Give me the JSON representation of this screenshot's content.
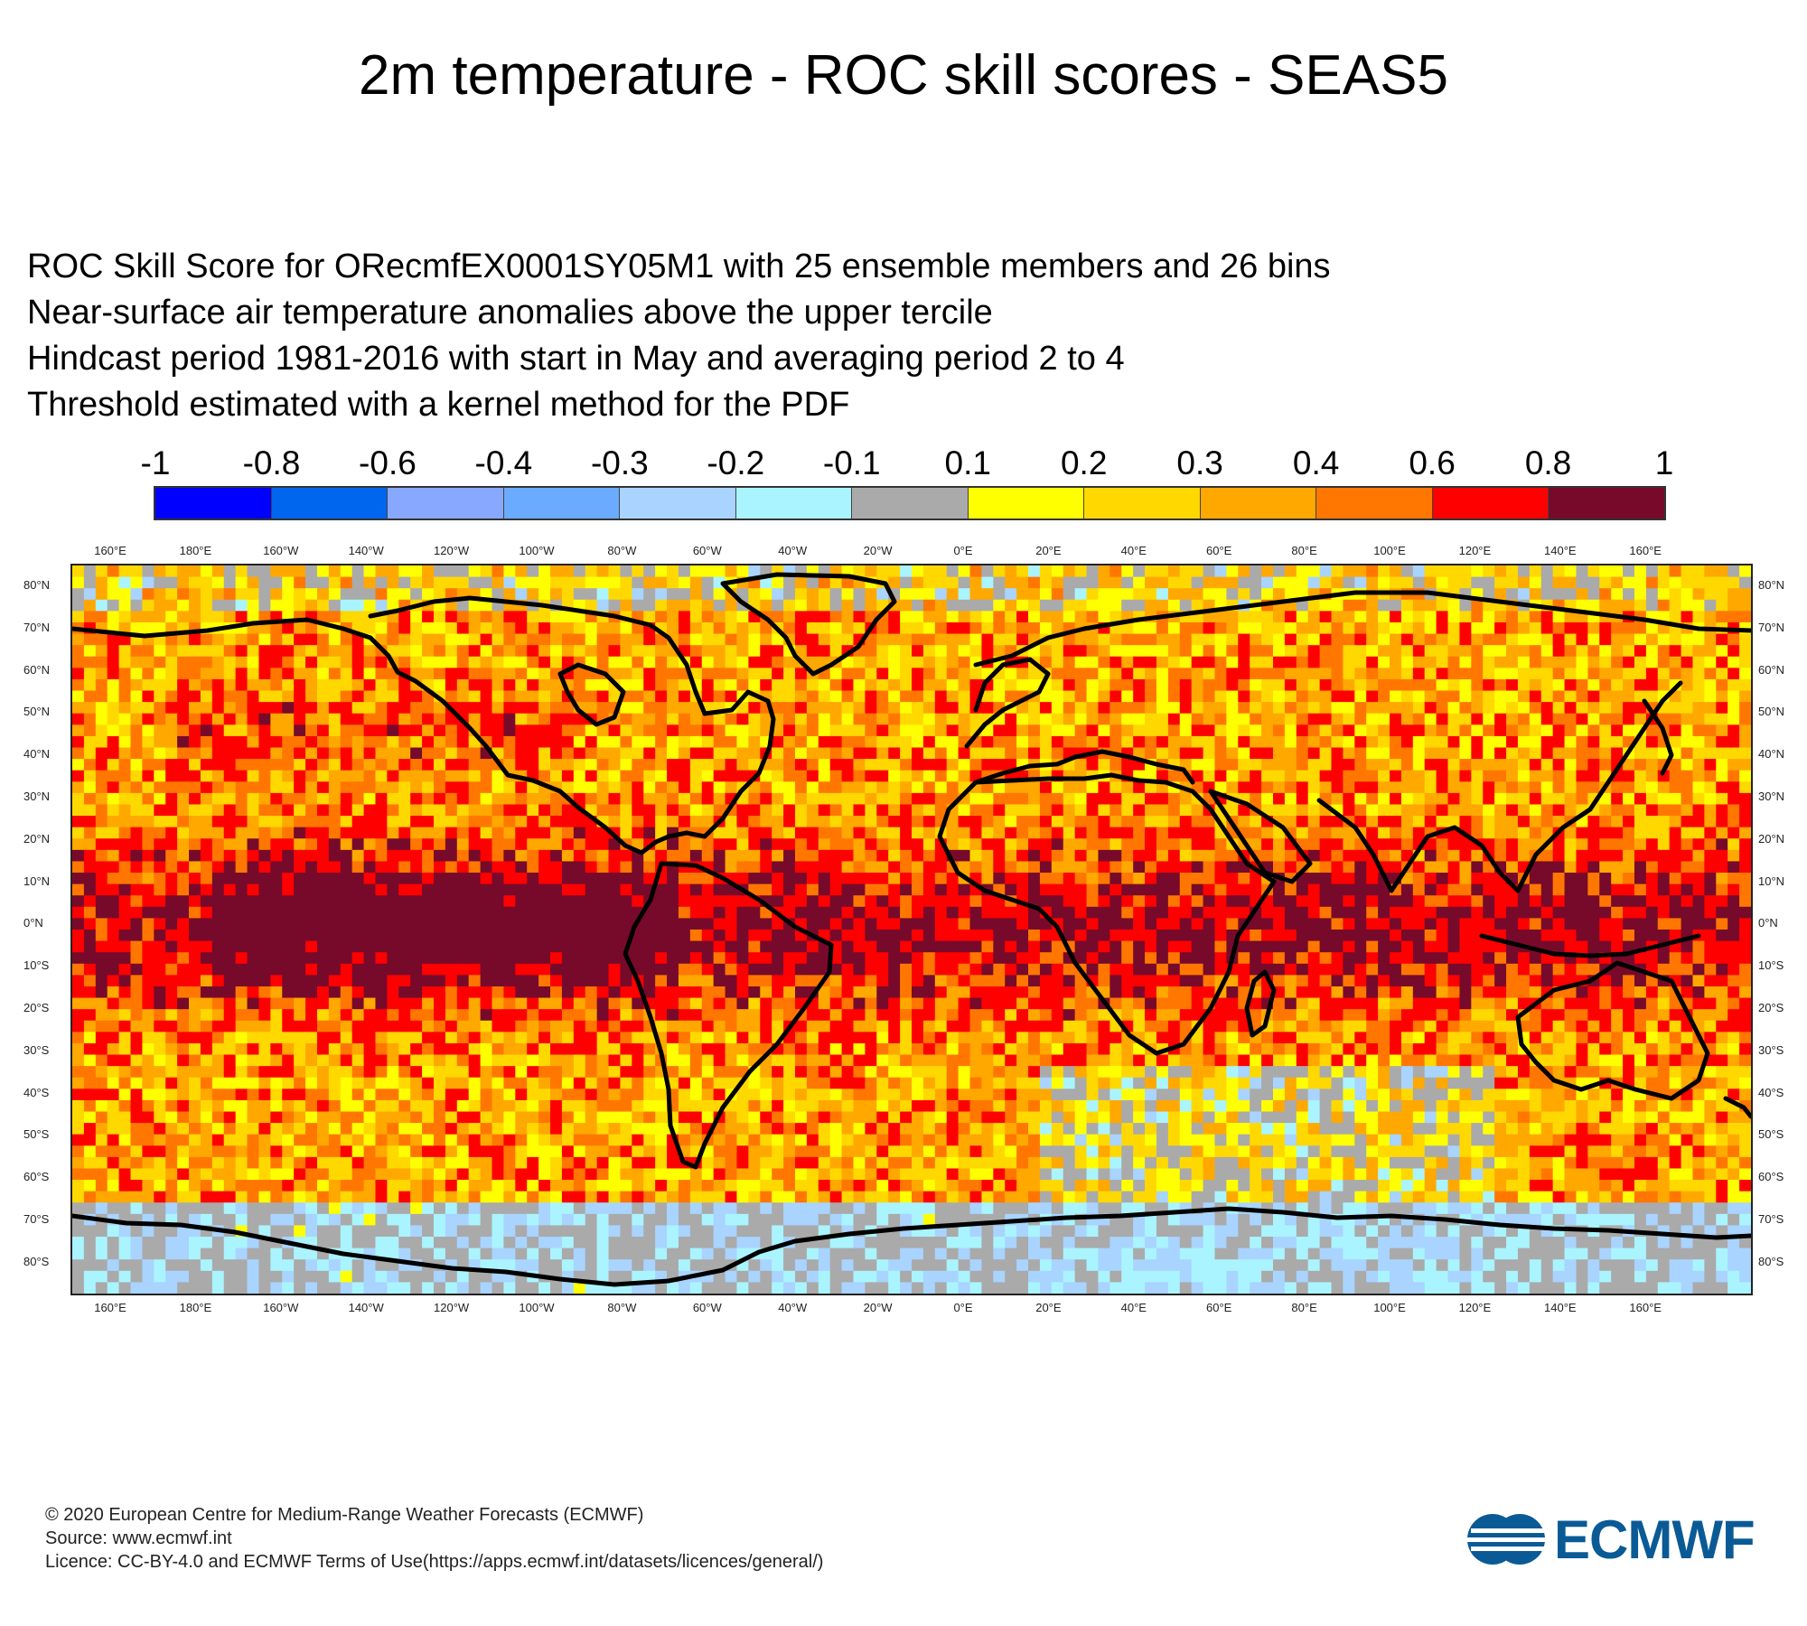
{
  "title": "2m temperature - ROC skill scores - SEAS5",
  "subtitle_lines": [
    "ROC Skill Score for ORecmfEX0001SY05M1 with 25 ensemble members and 26 bins",
    "Near-surface air temperature anomalies above the upper tercile",
    "Hindcast period 1981-2016 with start in May and averaging period  2 to  4",
    "Threshold estimated with a kernel method for the PDF"
  ],
  "colorbar": {
    "labels": [
      "-1",
      "-0.8",
      "-0.6",
      "-0.4",
      "-0.3",
      "-0.2",
      "-0.1",
      "0.1",
      "0.2",
      "0.3",
      "0.4",
      "0.6",
      "0.8",
      "1"
    ],
    "colors": [
      "#0000ff",
      "#0066ee",
      "#88a8ff",
      "#6aabff",
      "#a8d4ff",
      "#aaf4ff",
      "#aaaaaa",
      "#ffff00",
      "#ffd800",
      "#ffa800",
      "#ff7700",
      "#ff0000",
      "#770a2a"
    ]
  },
  "map": {
    "lon_labels": [
      "160°E",
      "180°E",
      "160°W",
      "140°W",
      "120°W",
      "100°W",
      "80°W",
      "60°W",
      "40°W",
      "20°W",
      "0°E",
      "20°E",
      "40°E",
      "60°E",
      "80°E",
      "100°E",
      "120°E",
      "140°E",
      "160°E"
    ],
    "lat_labels": [
      "80°N",
      "70°N",
      "60°N",
      "50°N",
      "40°N",
      "30°N",
      "20°N",
      "10°N",
      "0°N",
      "10°S",
      "20°S",
      "30°S",
      "40°S",
      "50°S",
      "60°S",
      "70°S",
      "80°S"
    ],
    "grid_cols": 144,
    "grid_rows": 64
  },
  "footer": {
    "line1": "© 2020 European Centre for Medium-Range Weather Forecasts (ECMWF)",
    "line2": "Source: www.ecmwf.int",
    "line3": "Licence: CC-BY-4.0 and ECMWF Terms of Use(https://apps.ecmwf.int/datasets/licences/general/)"
  },
  "logo": {
    "text": "ECMWF",
    "color": "#0a5a96"
  }
}
